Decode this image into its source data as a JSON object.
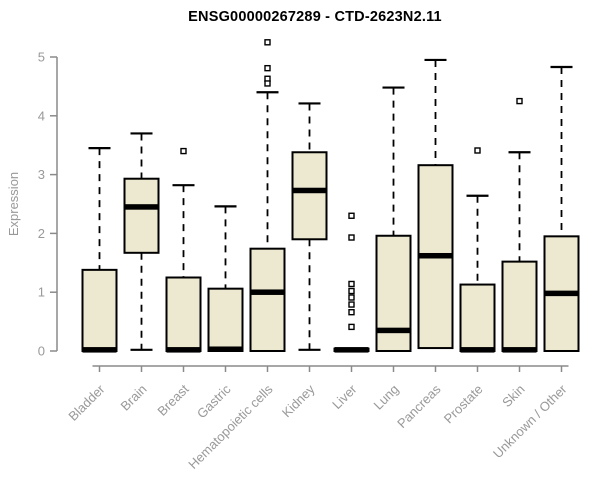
{
  "title": "ENSG00000267289 - CTD-2623N2.11",
  "colors": {
    "background": "#FFFFFF",
    "box_fill": "#EDE8D0",
    "box_border": "#000000",
    "median": "#000000",
    "whisker": "#000000",
    "outlier_stroke": "#000000",
    "outlier_fill": "#FFFFFF",
    "axis": "#8A8A8A",
    "tick_label": "#999999",
    "title_color": "#000000"
  },
  "chart_data": {
    "type": "boxplot",
    "title": "ENSG00000267289 - CTD-2623N2.11",
    "xlabel": "",
    "ylabel": "Expression",
    "ylim": [
      0,
      5
    ],
    "yticks": [
      0,
      1,
      2,
      3,
      4,
      5
    ],
    "grid": false,
    "legend": "none",
    "categories": [
      "Bladder",
      "Brain",
      "Breast",
      "Gastric",
      "Hematopoietic cells",
      "Kidney",
      "Liver",
      "Lung",
      "Pancreas",
      "Prostate",
      "Skin",
      "Unknown / Other"
    ],
    "boxes": [
      {
        "name": "Bladder",
        "whisker_low": 0,
        "q1": 0,
        "median": 0.02,
        "q3": 1.38,
        "whisker_high": 3.45,
        "outliers": []
      },
      {
        "name": "Brain",
        "whisker_low": 0.02,
        "q1": 1.67,
        "median": 2.45,
        "q3": 2.93,
        "whisker_high": 3.7,
        "outliers": []
      },
      {
        "name": "Breast",
        "whisker_low": 0,
        "q1": 0,
        "median": 0.02,
        "q3": 1.25,
        "whisker_high": 2.82,
        "outliers": [
          3.4
        ]
      },
      {
        "name": "Gastric",
        "whisker_low": 0,
        "q1": 0,
        "median": 0.03,
        "q3": 1.06,
        "whisker_high": 2.46,
        "outliers": []
      },
      {
        "name": "Hematopoietic cells",
        "whisker_low": 0,
        "q1": 0,
        "median": 1.0,
        "q3": 1.74,
        "whisker_high": 4.4,
        "outliers": [
          5.25,
          4.81,
          4.63,
          4.55
        ]
      },
      {
        "name": "Kidney",
        "whisker_low": 0.02,
        "q1": 1.9,
        "median": 2.73,
        "q3": 3.38,
        "whisker_high": 4.21,
        "outliers": []
      },
      {
        "name": "Liver",
        "whisker_low": 0,
        "q1": 0,
        "median": 0.02,
        "q3": 0.04,
        "whisker_high": 0.04,
        "outliers": [
          2.3,
          1.93,
          1.14,
          1.02,
          0.91,
          0.79,
          0.66,
          0.41
        ]
      },
      {
        "name": "Lung",
        "whisker_low": 0,
        "q1": 0,
        "median": 0.35,
        "q3": 1.96,
        "whisker_high": 4.48,
        "outliers": []
      },
      {
        "name": "Pancreas",
        "whisker_low": 0.05,
        "q1": 0.05,
        "median": 1.62,
        "q3": 3.16,
        "whisker_high": 4.95,
        "outliers": []
      },
      {
        "name": "Prostate",
        "whisker_low": 0,
        "q1": 0,
        "median": 0.02,
        "q3": 1.13,
        "whisker_high": 2.64,
        "outliers": [
          3.41
        ]
      },
      {
        "name": "Skin",
        "whisker_low": 0,
        "q1": 0,
        "median": 0.02,
        "q3": 1.52,
        "whisker_high": 3.38,
        "outliers": [
          4.25
        ]
      },
      {
        "name": "Unknown / Other",
        "whisker_low": 0,
        "q1": 0,
        "median": 0.98,
        "q3": 1.95,
        "whisker_high": 4.83,
        "outliers": []
      }
    ]
  }
}
